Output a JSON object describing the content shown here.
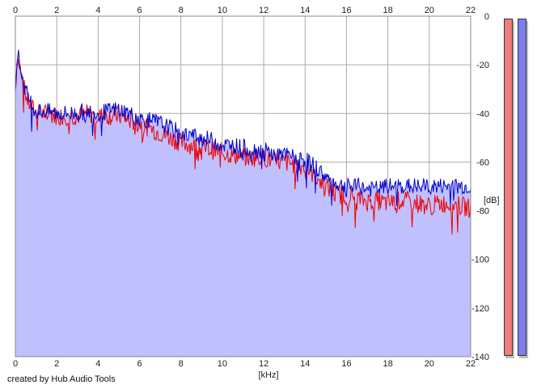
{
  "credit": "created by Hub Audio Tools",
  "colors": {
    "left_channel": "#ee0000",
    "right_channel": "#0000cc",
    "fill": "#c0c0ff",
    "grid": "#aaaaaa",
    "meter_left": "#ee7d7d",
    "meter_right": "#7d7df0"
  },
  "meters": {
    "left": {
      "level": 1.0
    },
    "right": {
      "level": 1.0
    }
  },
  "chart_data": {
    "type": "line",
    "title": "",
    "xlabel": "[kHz]",
    "ylabel": "[dB]",
    "xlim": [
      0,
      22
    ],
    "ylim": [
      -140,
      0
    ],
    "grid": true,
    "x_ticks": [
      0,
      2,
      4,
      6,
      8,
      10,
      12,
      14,
      16,
      18,
      20,
      22
    ],
    "y_ticks": [
      0,
      -20,
      -40,
      -60,
      -80,
      -100,
      -120,
      -140
    ],
    "x_tick_labels": [
      "0",
      "2",
      "4",
      "6",
      "8",
      "10",
      "12",
      "14",
      "16",
      "18",
      "20",
      "22"
    ],
    "y_tick_labels": [
      "0",
      "-20",
      "-40",
      "-60",
      "-80",
      "-100",
      "-120",
      "-140"
    ],
    "series": [
      {
        "color": "#ee0000",
        "x": [
          0,
          0.1,
          0.2,
          0.4,
          0.6,
          1,
          1.5,
          2,
          2.5,
          3,
          3.5,
          4,
          4.5,
          5,
          5.5,
          6,
          6.5,
          7,
          7.5,
          8,
          8.5,
          9,
          9.5,
          10,
          10.5,
          11,
          11.5,
          12,
          12.5,
          13,
          13.5,
          14,
          14.5,
          15,
          15.5,
          16,
          16.5,
          17,
          17.5,
          18,
          18.5,
          19,
          19.5,
          20,
          20.5,
          21,
          21.5,
          22
        ],
        "values": [
          -30,
          -16,
          -20,
          -29,
          -35,
          -40,
          -40,
          -41,
          -41,
          -41,
          -40,
          -41,
          -41,
          -41,
          -43,
          -44,
          -46,
          -48,
          -50,
          -52,
          -53,
          -54,
          -55,
          -56,
          -57,
          -58,
          -58,
          -58,
          -60,
          -60,
          -61,
          -62,
          -66,
          -70,
          -73,
          -74,
          -75,
          -76,
          -76,
          -77,
          -76,
          -76,
          -77,
          -78,
          -77,
          -77,
          -78,
          -79
        ]
      },
      {
        "color": "#0000cc",
        "x": [
          0,
          0.1,
          0.2,
          0.4,
          0.6,
          1,
          1.5,
          2,
          2.5,
          3,
          3.5,
          4,
          4.5,
          5,
          5.5,
          6,
          6.5,
          7,
          7.5,
          8,
          8.5,
          9,
          9.5,
          10,
          10.5,
          11,
          11.5,
          12,
          12.5,
          13,
          13.5,
          14,
          14.5,
          15,
          15.5,
          16,
          16.5,
          17,
          17.5,
          18,
          18.5,
          19,
          19.5,
          20,
          20.5,
          21,
          21.5,
          22
        ],
        "values": [
          -28,
          -14,
          -19,
          -28,
          -33,
          -39,
          -39,
          -40,
          -40,
          -40,
          -39,
          -40,
          -39,
          -38,
          -40,
          -42,
          -43,
          -44,
          -46,
          -48,
          -49,
          -50,
          -51,
          -53,
          -53,
          -54,
          -55,
          -55,
          -57,
          -57,
          -58,
          -59,
          -62,
          -66,
          -69,
          -70,
          -70,
          -71,
          -71,
          -70,
          -70,
          -70,
          -70,
          -70,
          -70,
          -70,
          -70,
          -70
        ]
      }
    ]
  }
}
